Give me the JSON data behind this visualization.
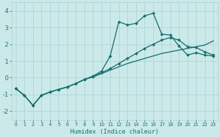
{
  "xlabel": "Humidex (Indice chaleur)",
  "bg_color": "#cce9e9",
  "grid_color": "#aad4d4",
  "line_color": "#1a7070",
  "xlim": [
    -0.5,
    23.5
  ],
  "ylim": [
    -2.5,
    4.5
  ],
  "xticks": [
    0,
    1,
    2,
    3,
    4,
    5,
    6,
    7,
    8,
    9,
    10,
    11,
    12,
    13,
    14,
    15,
    16,
    17,
    18,
    19,
    20,
    21,
    22,
    23
  ],
  "yticks": [
    -2,
    -1,
    0,
    1,
    2,
    3,
    4
  ],
  "series": [
    {
      "x": [
        0,
        1,
        2,
        3,
        4,
        5,
        6,
        7,
        8,
        9,
        10,
        11,
        12,
        13,
        14,
        15,
        16,
        17,
        18,
        19,
        20,
        21,
        22,
        23
      ],
      "y": [
        -0.65,
        -1.05,
        -1.65,
        -1.05,
        -0.85,
        -0.7,
        -0.55,
        -0.35,
        -0.1,
        0.05,
        0.25,
        0.45,
        0.65,
        0.85,
        1.0,
        1.15,
        1.3,
        1.45,
        1.55,
        1.65,
        1.75,
        1.85,
        1.95,
        2.2
      ],
      "marker": false,
      "lw": 1.0
    },
    {
      "x": [
        0,
        1,
        2,
        3,
        4,
        5,
        6,
        7,
        8,
        9,
        10,
        11,
        12,
        13,
        14,
        15,
        16,
        17,
        18,
        19,
        20,
        21,
        22,
        23
      ],
      "y": [
        -0.65,
        -1.05,
        -1.65,
        -1.05,
        -0.85,
        -0.7,
        -0.55,
        -0.35,
        -0.1,
        0.05,
        0.3,
        0.55,
        0.85,
        1.15,
        1.45,
        1.75,
        2.0,
        2.25,
        2.4,
        2.25,
        1.85,
        1.8,
        1.55,
        1.35
      ],
      "marker": true,
      "lw": 1.0
    },
    {
      "x": [
        0,
        1,
        2,
        3,
        4,
        5,
        6,
        7,
        8,
        9,
        10,
        11,
        12,
        13,
        14,
        15,
        16,
        17,
        18,
        19,
        20,
        21,
        22,
        23
      ],
      "y": [
        -0.65,
        -1.05,
        -1.65,
        -1.05,
        -0.85,
        -0.7,
        -0.55,
        -0.35,
        -0.1,
        0.1,
        0.4,
        1.3,
        3.35,
        3.15,
        3.25,
        3.7,
        3.85,
        2.6,
        2.55,
        1.9,
        1.35,
        1.5,
        1.35,
        1.3
      ],
      "marker": true,
      "lw": 1.0
    }
  ]
}
